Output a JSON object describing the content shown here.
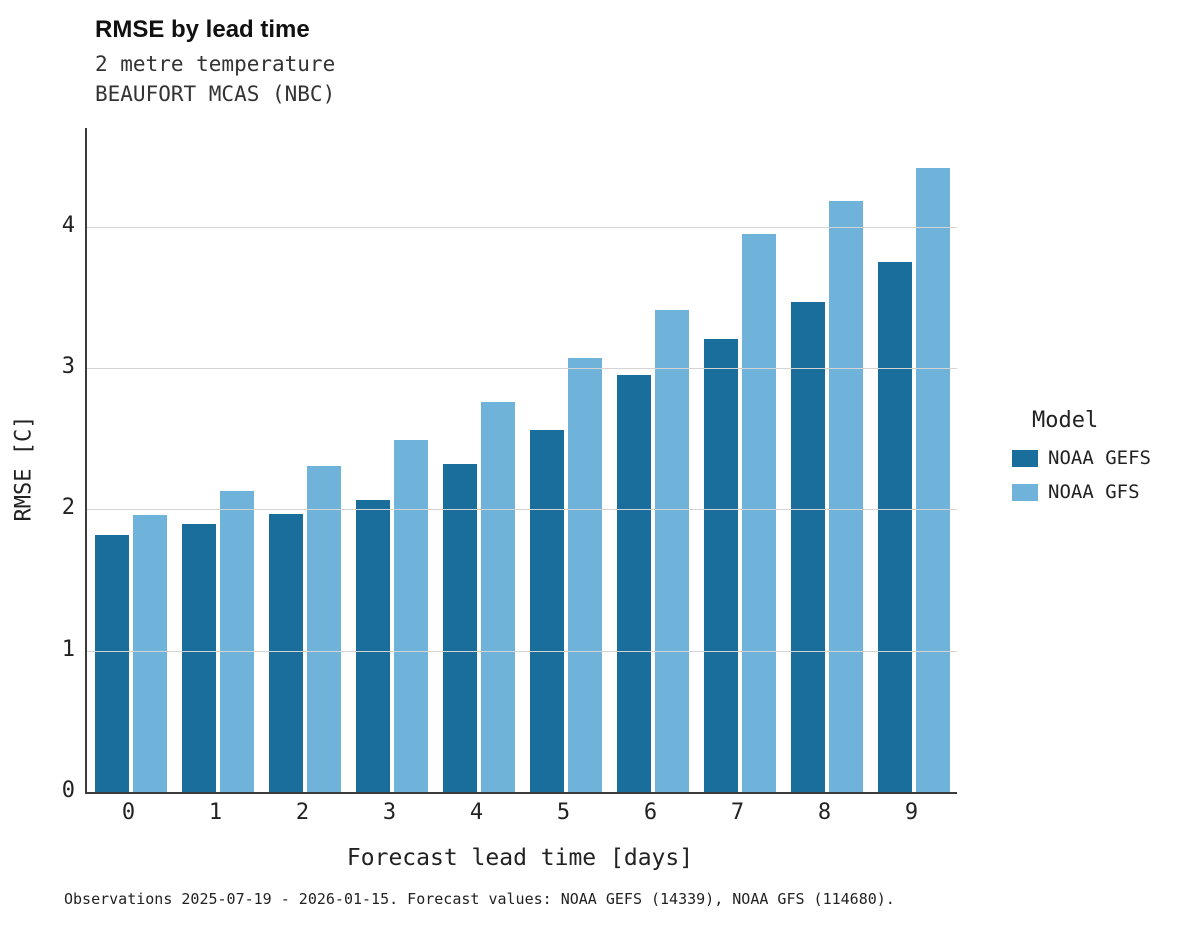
{
  "chart_data": {
    "type": "bar",
    "title": "RMSE by lead time",
    "subtitle_line1": "2 metre temperature",
    "subtitle_line2": "BEAUFORT MCAS (NBC)",
    "xlabel": "Forecast lead time [days]",
    "ylabel": "RMSE [C]",
    "categories": [
      "0",
      "1",
      "2",
      "3",
      "4",
      "5",
      "6",
      "7",
      "8",
      "9"
    ],
    "series": [
      {
        "name": "NOAA GEFS",
        "color": "#1A6E9C",
        "values": [
          1.82,
          1.9,
          1.97,
          2.07,
          2.32,
          2.56,
          2.95,
          3.21,
          3.47,
          3.75
        ]
      },
      {
        "name": "NOAA GFS",
        "color": "#6FB3DA",
        "values": [
          1.96,
          2.13,
          2.31,
          2.49,
          2.76,
          3.07,
          3.41,
          3.95,
          4.18,
          4.42
        ]
      }
    ],
    "yticks": [
      0,
      1,
      2,
      3,
      4
    ],
    "ylim": [
      0,
      4.7
    ],
    "grid": "horizontal",
    "legend_title": "Model",
    "legend_position": "right",
    "footnote": "Observations 2025-07-19 - 2026-01-15. Forecast values: NOAA GEFS (14339), NOAA GFS (114680)."
  }
}
